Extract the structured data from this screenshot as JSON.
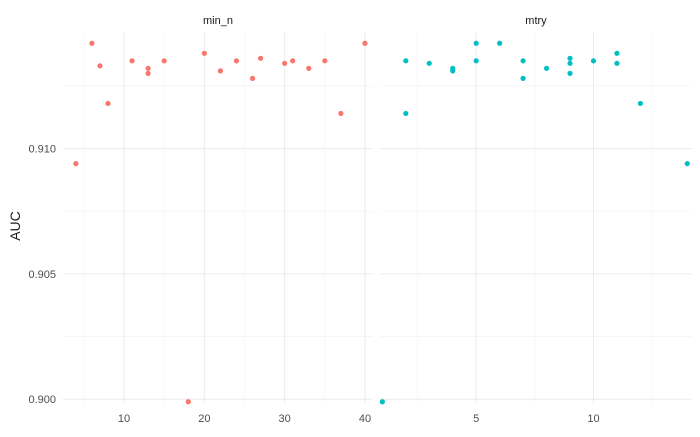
{
  "chart_data": {
    "type": "scatter",
    "ylabel": "AUC",
    "ylim": [
      0.89985,
      0.91465
    ],
    "yticks": [
      0.9,
      0.905,
      0.91
    ],
    "ytick_labels": [
      "0.900",
      "0.905",
      "0.910"
    ],
    "grid": true,
    "panels": [
      {
        "name": "min_n",
        "color": "#f8766d",
        "xlim": [
          2.4,
          41.0
        ],
        "xticks": [
          10,
          20,
          30,
          40
        ],
        "xtick_labels": [
          "10",
          "20",
          "30",
          "40"
        ],
        "points": [
          {
            "x": 4,
            "y": 0.9094
          },
          {
            "x": 6,
            "y": 0.9142
          },
          {
            "x": 7,
            "y": 0.9133
          },
          {
            "x": 8,
            "y": 0.9118
          },
          {
            "x": 11,
            "y": 0.9135
          },
          {
            "x": 13,
            "y": 0.9132
          },
          {
            "x": 13,
            "y": 0.913
          },
          {
            "x": 15,
            "y": 0.9135
          },
          {
            "x": 18,
            "y": 0.8999
          },
          {
            "x": 20,
            "y": 0.9138
          },
          {
            "x": 22,
            "y": 0.9131
          },
          {
            "x": 24,
            "y": 0.9135
          },
          {
            "x": 26,
            "y": 0.9128
          },
          {
            "x": 27,
            "y": 0.9136
          },
          {
            "x": 30,
            "y": 0.9134
          },
          {
            "x": 31,
            "y": 0.9135
          },
          {
            "x": 33,
            "y": 0.9132
          },
          {
            "x": 35,
            "y": 0.9135
          },
          {
            "x": 37,
            "y": 0.9114
          },
          {
            "x": 40,
            "y": 0.9142
          }
        ]
      },
      {
        "name": "mtry",
        "color": "#00bfc4",
        "xlim": [
          0.9,
          14.2
        ],
        "xticks": [
          5,
          10
        ],
        "xtick_labels": [
          "5",
          "10"
        ],
        "points": [
          {
            "x": 1,
            "y": 0.8999
          },
          {
            "x": 2,
            "y": 0.9114
          },
          {
            "x": 2,
            "y": 0.9135
          },
          {
            "x": 3,
            "y": 0.9134
          },
          {
            "x": 4,
            "y": 0.9132
          },
          {
            "x": 4,
            "y": 0.9131
          },
          {
            "x": 5,
            "y": 0.9142
          },
          {
            "x": 5,
            "y": 0.9135
          },
          {
            "x": 6,
            "y": 0.9142
          },
          {
            "x": 7,
            "y": 0.9135
          },
          {
            "x": 7,
            "y": 0.9128
          },
          {
            "x": 8,
            "y": 0.9132
          },
          {
            "x": 9,
            "y": 0.9136
          },
          {
            "x": 9,
            "y": 0.9134
          },
          {
            "x": 9,
            "y": 0.913
          },
          {
            "x": 10,
            "y": 0.9135
          },
          {
            "x": 11,
            "y": 0.9138
          },
          {
            "x": 11,
            "y": 0.9134
          },
          {
            "x": 12,
            "y": 0.9118
          },
          {
            "x": 14,
            "y": 0.9094
          }
        ]
      }
    ]
  }
}
